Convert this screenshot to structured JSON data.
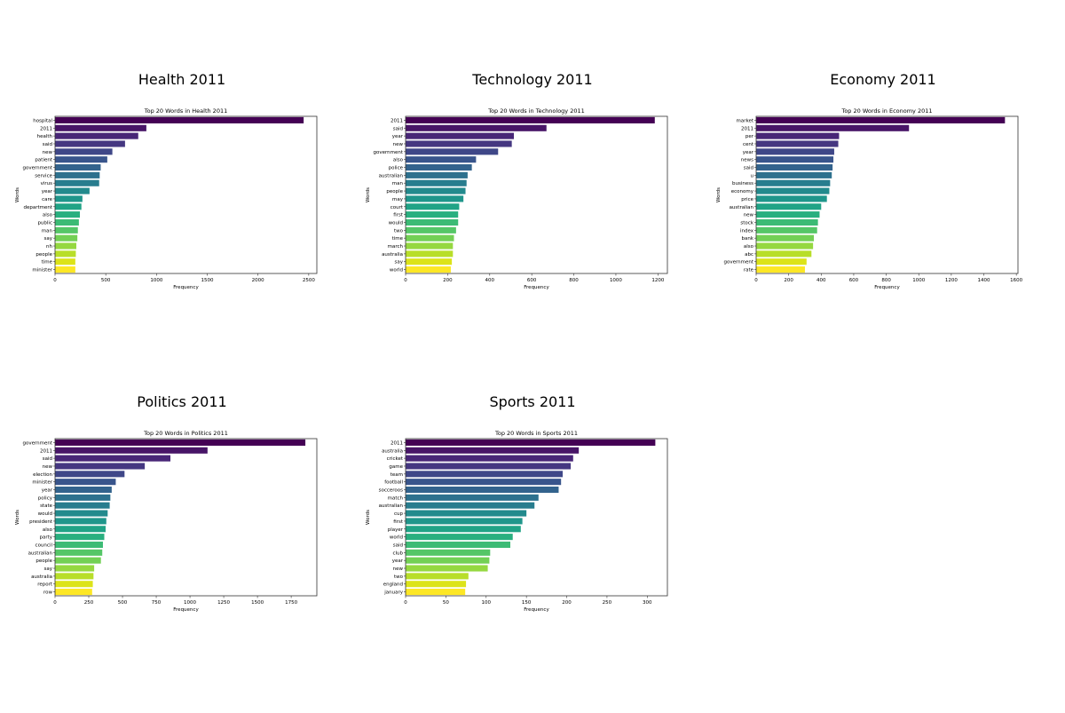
{
  "chart_data": [
    {
      "type": "bar",
      "orientation": "horizontal",
      "panel_title": "Health 2011",
      "title": "Top 20 Words in Health 2011",
      "xlabel": "Frequency",
      "ylabel": "Words",
      "xlim": [
        0,
        2580
      ],
      "xticks": [
        0,
        500,
        1000,
        1500,
        2000,
        2500
      ],
      "xtick_labels": [
        "0",
        "500",
        "1000",
        "1500",
        "2000",
        "2500"
      ],
      "categories": [
        "hospital",
        "2011",
        "health",
        "said",
        "new",
        "patient",
        "government",
        "service",
        "virus",
        "year",
        "care",
        "department",
        "also",
        "public",
        "man",
        "say",
        "nh",
        "people",
        "time",
        "minister"
      ],
      "values": [
        2450,
        900,
        820,
        690,
        565,
        515,
        450,
        440,
        435,
        340,
        270,
        260,
        245,
        235,
        225,
        220,
        210,
        205,
        200,
        200
      ],
      "grid": false
    },
    {
      "type": "bar",
      "orientation": "horizontal",
      "panel_title": "Technology 2011",
      "title": "Top 20 Words in Technology 2011",
      "xlabel": "Frequency",
      "ylabel": "Words",
      "xlim": [
        0,
        1245
      ],
      "xticks": [
        0,
        200,
        400,
        600,
        800,
        1000,
        1200
      ],
      "xtick_labels": [
        "0",
        "200",
        "400",
        "600",
        "800",
        "1000",
        "1200"
      ],
      "categories": [
        "2011",
        "said",
        "year",
        "new",
        "government",
        "also",
        "police",
        "australian",
        "man",
        "people",
        "may",
        "court",
        "first",
        "would",
        "two",
        "time",
        "march",
        "australia",
        "say",
        "world"
      ],
      "values": [
        1185,
        670,
        515,
        505,
        440,
        335,
        315,
        295,
        290,
        285,
        275,
        255,
        250,
        250,
        240,
        230,
        225,
        225,
        220,
        215
      ],
      "grid": false
    },
    {
      "type": "bar",
      "orientation": "horizontal",
      "panel_title": "Economy 2011",
      "title": "Top 20 Words in Economy 2011",
      "xlabel": "Frequency",
      "ylabel": "Words",
      "xlim": [
        0,
        1610
      ],
      "xticks": [
        0,
        200,
        400,
        600,
        800,
        1000,
        1200,
        1400,
        1600
      ],
      "xtick_labels": [
        "0",
        "200",
        "400",
        "600",
        "800",
        "1000",
        "1200",
        "1400",
        "1600"
      ],
      "categories": [
        "market",
        "2011",
        "per",
        "cent",
        "year",
        "news",
        "said",
        "u",
        "business",
        "economy",
        "price",
        "australian",
        "new",
        "stock",
        "index",
        "bank",
        "also",
        "abc",
        "government",
        "rate"
      ],
      "values": [
        1530,
        940,
        510,
        505,
        480,
        475,
        470,
        465,
        455,
        450,
        435,
        400,
        390,
        380,
        375,
        355,
        350,
        340,
        310,
        300
      ],
      "grid": false
    },
    {
      "type": "bar",
      "orientation": "horizontal",
      "panel_title": "Politics 2011",
      "title": "Top 20 Words in Politics 2011",
      "xlabel": "Frequency",
      "ylabel": "Words",
      "xlim": [
        0,
        1940
      ],
      "xticks": [
        0,
        250,
        500,
        750,
        1000,
        1250,
        1500,
        1750
      ],
      "xtick_labels": [
        "0",
        "250",
        "500",
        "750",
        "1000",
        "1250",
        "1500",
        "1750"
      ],
      "categories": [
        "government",
        "2011",
        "said",
        "new",
        "election",
        "minister",
        "year",
        "policy",
        "state",
        "would",
        "president",
        "also",
        "party",
        "council",
        "australian",
        "people",
        "say",
        "australia",
        "report",
        "row"
      ],
      "values": [
        1855,
        1130,
        855,
        665,
        515,
        450,
        420,
        410,
        405,
        390,
        380,
        375,
        365,
        355,
        350,
        340,
        290,
        285,
        280,
        275
      ],
      "grid": false
    },
    {
      "type": "bar",
      "orientation": "horizontal",
      "panel_title": "Sports 2011",
      "title": "Top 20 Words in Sports 2011",
      "xlabel": "Frequency",
      "ylabel": "Words",
      "xlim": [
        0,
        325
      ],
      "xticks": [
        0,
        50,
        100,
        150,
        200,
        250,
        300
      ],
      "xtick_labels": [
        "0",
        "50",
        "100",
        "150",
        "200",
        "250",
        "300"
      ],
      "categories": [
        "2011",
        "australia",
        "cricket",
        "game",
        "team",
        "football",
        "socceroos",
        "match",
        "australian",
        "cup",
        "first",
        "player",
        "world",
        "said",
        "club",
        "year",
        "new",
        "two",
        "england",
        "january"
      ],
      "values": [
        310,
        215,
        208,
        205,
        195,
        193,
        190,
        165,
        160,
        150,
        145,
        143,
        133,
        130,
        105,
        104,
        102,
        78,
        75,
        74
      ],
      "grid": false
    }
  ],
  "palette": [
    "#440154",
    "#481567",
    "#482677",
    "#453781",
    "#3f4788",
    "#39558c",
    "#33638d",
    "#2d718e",
    "#287d8e",
    "#238a8d",
    "#1f968b",
    "#20a386",
    "#29af7f",
    "#3cbb75",
    "#55c667",
    "#73d055",
    "#95d840",
    "#b8de29",
    "#dce319",
    "#fde725"
  ]
}
